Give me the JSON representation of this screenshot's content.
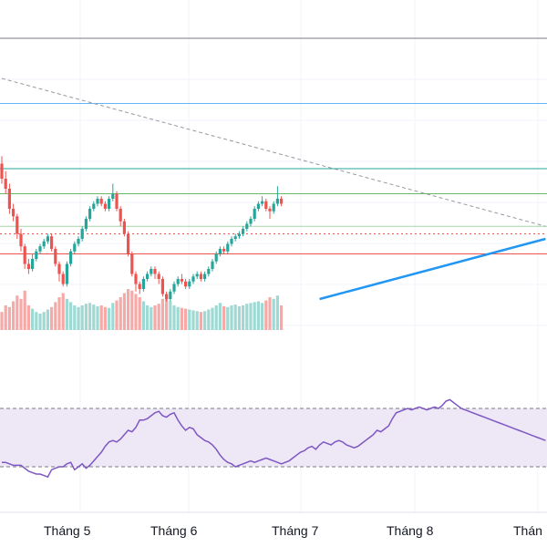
{
  "chart_data": {
    "type": "candlestick",
    "x_axis": {
      "tick_labels": [
        "Tháng 5",
        "Tháng 6",
        "Tháng 7",
        "Tháng 8",
        "Thán"
      ]
    },
    "price_panel": {
      "grid": true,
      "horizontal_levels": [
        {
          "value": 100.0,
          "color": "#787b86"
        },
        {
          "value": 87.0,
          "color": "#64b5f6"
        },
        {
          "value": 74.0,
          "color": "#26a69a"
        },
        {
          "value": 69.0,
          "color": "#66bb6a"
        },
        {
          "value": 62.5,
          "color": "#a5d6a7"
        },
        {
          "value": 61.0,
          "color": "#ef5350",
          "style": "dotted"
        },
        {
          "value": 57.0,
          "color": "#ef5350"
        }
      ],
      "trendlines": [
        {
          "points": [
            [
              0,
              92
            ],
            [
              142,
              62.5
            ]
          ],
          "color": "#9598a1",
          "style": "dashed"
        },
        {
          "points": [
            [
              83,
              48
            ],
            [
              142,
              60
            ]
          ],
          "color": "#2196f3",
          "style": "solid"
        }
      ],
      "up_color": "#26a69a",
      "down_color": "#ef5350",
      "volume_scale_max": 100
    },
    "rsi_panel": {
      "band_upper": 70,
      "band_lower": 30,
      "line_color": "#7e57c2",
      "band_fill": "#ede7f6",
      "values": [
        33,
        33,
        32,
        31,
        31,
        31,
        29,
        27,
        26,
        25,
        25,
        24,
        23,
        28,
        29,
        30,
        30,
        32,
        33,
        28,
        30,
        32,
        29,
        31,
        34,
        37,
        40,
        44,
        47,
        48,
        47,
        49,
        52,
        55,
        54,
        57,
        62,
        62,
        63,
        65,
        67,
        68,
        65,
        64,
        66,
        67,
        62,
        58,
        55,
        57,
        56,
        52,
        50,
        48,
        47,
        45,
        42,
        38,
        35,
        33,
        32,
        30,
        31,
        32,
        33,
        34,
        33,
        34,
        35,
        36,
        35,
        34,
        33,
        32,
        33,
        34,
        36,
        38,
        40,
        41,
        43,
        44,
        42,
        45,
        47,
        46,
        45,
        47,
        48,
        47,
        45,
        44,
        43,
        44,
        46,
        48,
        50,
        52,
        55,
        54,
        56,
        58,
        63,
        67,
        68,
        69,
        70,
        69,
        70,
        71,
        70,
        69,
        70,
        71,
        70,
        72,
        75,
        76,
        74,
        72,
        70,
        69,
        68,
        67,
        66,
        65,
        64,
        63,
        62,
        61,
        60,
        59,
        58,
        57,
        56,
        55,
        54,
        53,
        52,
        51,
        50,
        49,
        48
      ]
    },
    "candles": [
      [
        75.0,
        72.0,
        76.5,
        71.0,
        22
      ],
      [
        72.0,
        70.0,
        73.5,
        69.0,
        30
      ],
      [
        70.0,
        66.0,
        71.0,
        65.0,
        28
      ],
      [
        66.0,
        64.5,
        67.0,
        63.5,
        35
      ],
      [
        64.5,
        61.0,
        65.0,
        60.0,
        42
      ],
      [
        61.0,
        58.5,
        62.0,
        57.5,
        38
      ],
      [
        58.5,
        55.0,
        59.0,
        54.0,
        48
      ],
      [
        55.0,
        54.0,
        56.0,
        53.0,
        30
      ],
      [
        54.0,
        56.0,
        57.0,
        53.5,
        26
      ],
      [
        56.0,
        57.5,
        58.0,
        55.5,
        22
      ],
      [
        57.5,
        58.5,
        59.0,
        57.0,
        20
      ],
      [
        58.5,
        59.5,
        60.0,
        58.0,
        22
      ],
      [
        59.5,
        60.5,
        61.0,
        59.0,
        25
      ],
      [
        60.5,
        58.0,
        61.0,
        57.5,
        28
      ],
      [
        58.0,
        55.0,
        58.5,
        54.5,
        34
      ],
      [
        55.0,
        53.0,
        55.5,
        51.5,
        40
      ],
      [
        53.0,
        51.0,
        53.5,
        50.5,
        45
      ],
      [
        51.0,
        55.0,
        55.5,
        50.5,
        38
      ],
      [
        55.0,
        57.5,
        58.0,
        54.5,
        34
      ],
      [
        57.5,
        59.0,
        59.5,
        57.0,
        30
      ],
      [
        59.0,
        60.0,
        60.5,
        58.5,
        28
      ],
      [
        60.0,
        62.0,
        62.5,
        59.5,
        30
      ],
      [
        62.0,
        64.0,
        64.5,
        61.5,
        32
      ],
      [
        64.0,
        66.0,
        66.5,
        63.5,
        33
      ],
      [
        66.0,
        67.0,
        67.5,
        65.5,
        31
      ],
      [
        67.0,
        68.0,
        68.5,
        66.5,
        29
      ],
      [
        68.0,
        67.0,
        68.5,
        66.5,
        30
      ],
      [
        67.0,
        66.0,
        67.5,
        65.5,
        28
      ],
      [
        66.0,
        68.0,
        68.5,
        65.5,
        27
      ],
      [
        68.0,
        69.0,
        71.0,
        67.5,
        33
      ],
      [
        69.0,
        66.0,
        69.5,
        65.5,
        36
      ],
      [
        66.0,
        63.5,
        66.5,
        62.5,
        40
      ],
      [
        63.5,
        61.0,
        64.0,
        60.5,
        45
      ],
      [
        61.0,
        57.0,
        61.5,
        56.5,
        50
      ],
      [
        57.0,
        53.0,
        57.5,
        52.5,
        48
      ],
      [
        53.0,
        51.0,
        53.5,
        49.5,
        44
      ],
      [
        51.0,
        50.0,
        51.5,
        49.0,
        40
      ],
      [
        50.0,
        52.0,
        52.5,
        49.5,
        35
      ],
      [
        52.0,
        53.0,
        53.5,
        51.5,
        30
      ],
      [
        53.0,
        54.0,
        54.5,
        52.5,
        28
      ],
      [
        54.0,
        53.0,
        54.5,
        52.0,
        30
      ],
      [
        53.0,
        52.0,
        53.5,
        51.0,
        32
      ],
      [
        52.0,
        49.0,
        52.5,
        48.5,
        38
      ],
      [
        49.0,
        48.0,
        49.5,
        47.5,
        42
      ],
      [
        48.0,
        49.5,
        50.0,
        47.5,
        35
      ],
      [
        49.5,
        51.0,
        51.5,
        49.0,
        30
      ],
      [
        51.0,
        52.0,
        52.5,
        50.5,
        28
      ],
      [
        52.0,
        51.5,
        53.0,
        51.0,
        27
      ],
      [
        51.5,
        50.5,
        52.0,
        50.0,
        26
      ],
      [
        50.5,
        51.5,
        52.0,
        50.0,
        25
      ],
      [
        51.5,
        52.5,
        53.0,
        51.0,
        24
      ],
      [
        52.5,
        53.0,
        53.5,
        52.0,
        23
      ],
      [
        53.0,
        52.0,
        53.5,
        51.5,
        22
      ],
      [
        52.0,
        53.0,
        53.5,
        51.5,
        23
      ],
      [
        53.0,
        54.0,
        54.5,
        52.5,
        25
      ],
      [
        54.0,
        55.5,
        56.0,
        53.5,
        27
      ],
      [
        55.5,
        57.0,
        57.5,
        55.0,
        30
      ],
      [
        57.0,
        58.0,
        58.5,
        56.5,
        33
      ],
      [
        58.0,
        57.5,
        58.5,
        57.0,
        29
      ],
      [
        57.5,
        59.0,
        59.5,
        57.0,
        28
      ],
      [
        59.0,
        60.0,
        60.5,
        58.5,
        30
      ],
      [
        60.0,
        60.5,
        61.0,
        59.5,
        31
      ],
      [
        60.5,
        61.0,
        61.5,
        60.0,
        29
      ],
      [
        61.0,
        62.0,
        62.5,
        60.5,
        30
      ],
      [
        62.0,
        63.0,
        63.5,
        61.5,
        32
      ],
      [
        63.0,
        64.0,
        64.5,
        62.5,
        33
      ],
      [
        64.0,
        66.0,
        66.5,
        63.5,
        34
      ],
      [
        66.0,
        67.0,
        67.5,
        65.5,
        35
      ],
      [
        67.0,
        67.5,
        68.5,
        66.5,
        33
      ],
      [
        67.5,
        66.0,
        68.0,
        65.5,
        36
      ],
      [
        66.0,
        65.5,
        66.5,
        64.0,
        40
      ],
      [
        65.5,
        67.0,
        67.5,
        65.0,
        38
      ],
      [
        67.0,
        68.0,
        70.5,
        66.5,
        42
      ],
      [
        68.0,
        67.0,
        68.5,
        66.5,
        30
      ]
    ]
  }
}
